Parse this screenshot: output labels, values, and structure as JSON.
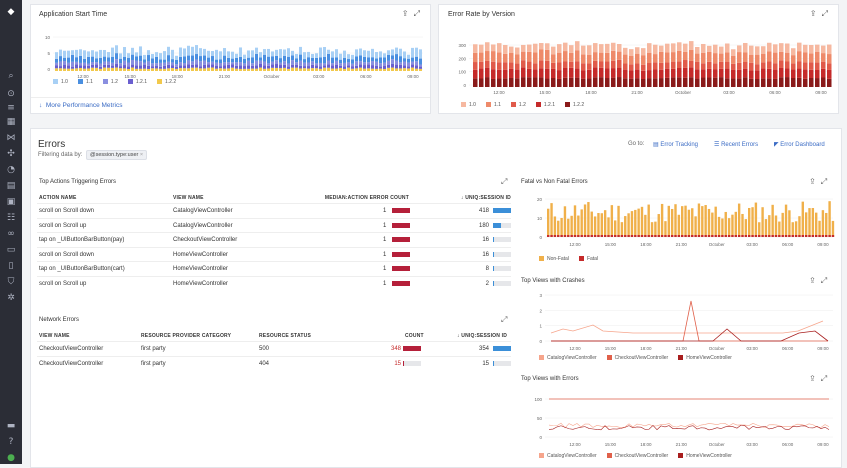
{
  "sidebar": {
    "icons": [
      "dog-logo-icon",
      "search-icon",
      "binoculars-icon",
      "list-icon",
      "dashboard-icon",
      "graph-icon",
      "network-icon",
      "gauge-icon",
      "server-icon",
      "box-icon",
      "filter-icon",
      "link-icon",
      "doc-icon",
      "page-icon",
      "shield-icon",
      "gear-icon",
      "chat-icon",
      "help-icon",
      "avatar-icon"
    ]
  },
  "top_left": {
    "title": "Application Start Time",
    "link": "More Performance Metrics",
    "legend": [
      {
        "name": "1.0",
        "color": "#a8d0f5"
      },
      {
        "name": "1.1",
        "color": "#4a8fe0"
      },
      {
        "name": "1.2",
        "color": "#8a8fe0"
      },
      {
        "name": "1.2.1",
        "color": "#6a5fcf"
      },
      {
        "name": "1.2.2",
        "color": "#f2c94c"
      }
    ],
    "yticks": [
      "10",
      "5",
      "0"
    ],
    "xticks": [
      "12:00",
      "15:00",
      "18:00",
      "21:00",
      "October",
      "03:00",
      "06:00",
      "09:00"
    ]
  },
  "top_right": {
    "title": "Error Rate by Version",
    "legend": [
      {
        "name": "1.0",
        "color": "#f6b8a0"
      },
      {
        "name": "1.1",
        "color": "#ee8a6a"
      },
      {
        "name": "1.2",
        "color": "#e05a4a"
      },
      {
        "name": "1.2.1",
        "color": "#c52a2a"
      },
      {
        "name": "1.2.2",
        "color": "#8a1a1a"
      }
    ],
    "yticks": [
      "300",
      "200",
      "100",
      "0"
    ],
    "xticks": [
      "12:00",
      "15:00",
      "18:00",
      "21:00",
      "October",
      "03:00",
      "06:00",
      "09:00"
    ]
  },
  "errors": {
    "title": "Errors",
    "filter_label": "Filtering data by:",
    "filter_tag": "@session.type:user",
    "goto_label": "Go to:",
    "goto_links": [
      "Error Tracking",
      "Recent Errors",
      "Error Dashboard"
    ]
  },
  "top_actions": {
    "title": "Top Actions Triggering Errors",
    "headers": [
      "ACTION NAME",
      "VIEW NAME",
      "MEDIAN:ACTION ERROR COUNT",
      "↓ UNIQ:SESSION ID"
    ],
    "rows": [
      {
        "action": "scroll on Scroll down",
        "view": "CatalogViewController",
        "count": "1",
        "sessions": "418",
        "frac": 1.0
      },
      {
        "action": "scroll on Scroll up",
        "view": "CatalogViewController",
        "count": "1",
        "sessions": "180",
        "frac": 0.43
      },
      {
        "action": "tap on _UIButtonBarButton(pay)",
        "view": "CheckoutViewController",
        "count": "1",
        "sessions": "16",
        "frac": 0.04
      },
      {
        "action": "scroll on Scroll down",
        "view": "HomeViewController",
        "count": "1",
        "sessions": "16",
        "frac": 0.04
      },
      {
        "action": "tap on _UIButtonBarButton(cart)",
        "view": "HomeViewController",
        "count": "1",
        "sessions": "8",
        "frac": 0.02
      },
      {
        "action": "scroll on Scroll up",
        "view": "HomeViewController",
        "count": "1",
        "sessions": "2",
        "frac": 0.005
      }
    ]
  },
  "network_errors": {
    "title": "Network Errors",
    "headers": [
      "VIEW NAME",
      "RESOURCE PROVIDER CATEGORY",
      "RESOURCE STATUS",
      "COUNT",
      "↓ UNIQ:SESSION ID"
    ],
    "rows": [
      {
        "view": "CheckoutViewController",
        "category": "first party",
        "status": "500",
        "count": "348",
        "count_frac": 1.0,
        "sessions": "354",
        "frac": 1.0
      },
      {
        "view": "CheckoutViewController",
        "category": "first party",
        "status": "404",
        "count": "15",
        "count_frac": 0.04,
        "sessions": "15",
        "frac": 0.04
      }
    ]
  },
  "fatal_chart": {
    "title": "Fatal vs Non Fatal Errors",
    "yticks": [
      "20",
      "10",
      "0"
    ],
    "xticks": [
      "12:00",
      "15:00",
      "18:00",
      "21:00",
      "October",
      "03:00",
      "06:00",
      "09:00"
    ],
    "legend": [
      {
        "name": "Non-Fatal",
        "color": "#f0b04a"
      },
      {
        "name": "Fatal",
        "color": "#c52a2a"
      }
    ]
  },
  "crashes_chart": {
    "title": "Top Views with Crashes",
    "yticks": [
      "3",
      "2",
      "1",
      "0"
    ],
    "xticks": [
      "12:00",
      "15:00",
      "18:00",
      "21:00",
      "October",
      "03:00",
      "06:00",
      "09:00"
    ],
    "legend": [
      {
        "name": "CatalogViewController",
        "color": "#f6a58c"
      },
      {
        "name": "CheckoutViewController",
        "color": "#e0604a"
      },
      {
        "name": "HomeViewController",
        "color": "#a81e1e"
      }
    ]
  },
  "errors_views_chart": {
    "title": "Top Views with Errors",
    "yticks": [
      "100",
      "50",
      "0"
    ],
    "xticks": [
      "12:00",
      "15:00",
      "18:00",
      "21:00",
      "October",
      "03:00",
      "06:00",
      "09:00"
    ],
    "legend": [
      {
        "name": "CatalogViewController",
        "color": "#f6a58c"
      },
      {
        "name": "CheckoutViewController",
        "color": "#e0604a"
      },
      {
        "name": "HomeViewController",
        "color": "#a81e1e"
      }
    ]
  }
}
